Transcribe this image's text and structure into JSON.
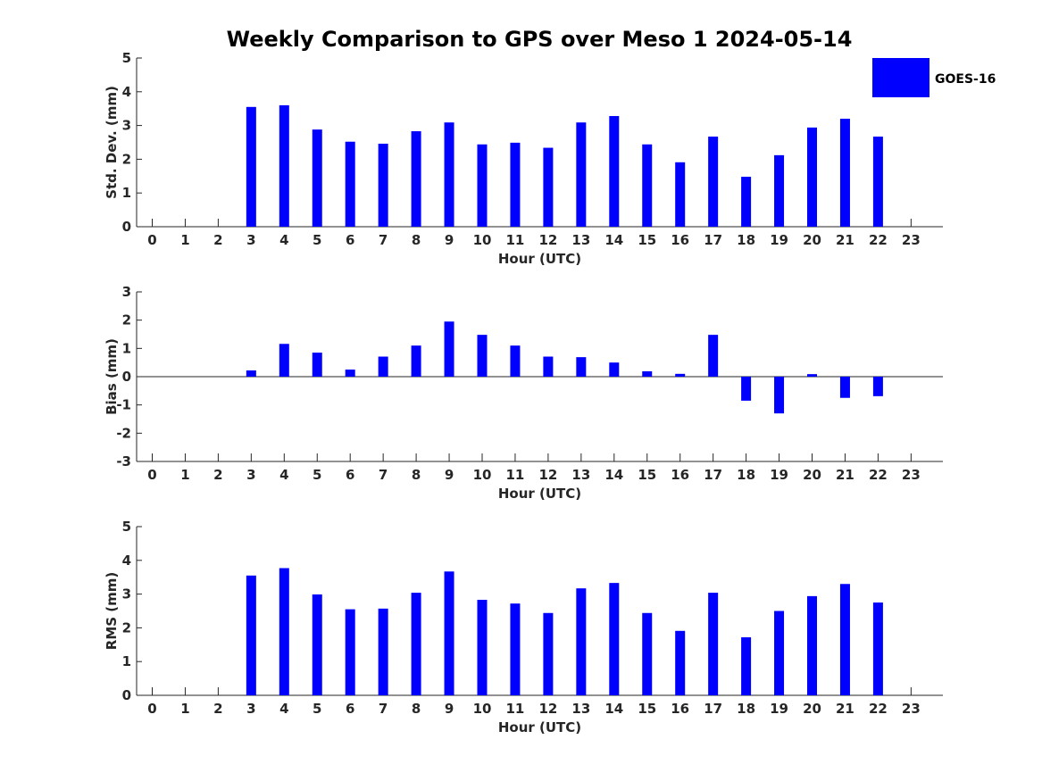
{
  "title": "Weekly Comparison to GPS over Meso 1 2024-05-14",
  "legend": {
    "label": "GOES-16",
    "color": "#0000ff"
  },
  "chart_data": [
    {
      "type": "bar",
      "name": "std",
      "ylabel": "Std. Dev. (mm)",
      "xlabel": "Hour (UTC)",
      "ylim": [
        0,
        5
      ],
      "yticks": [
        "0",
        "1",
        "2",
        "3",
        "4",
        "5"
      ],
      "categories": [
        "0",
        "1",
        "2",
        "3",
        "4",
        "5",
        "6",
        "7",
        "8",
        "9",
        "10",
        "11",
        "12",
        "13",
        "14",
        "15",
        "16",
        "17",
        "18",
        "19",
        "20",
        "21",
        "22",
        "23"
      ],
      "series": [
        {
          "name": "GOES-16",
          "values": [
            null,
            null,
            null,
            3.55,
            3.6,
            2.88,
            2.52,
            2.46,
            2.83,
            3.09,
            2.44,
            2.49,
            2.34,
            3.09,
            3.28,
            2.44,
            1.91,
            2.67,
            1.48,
            2.12,
            2.94,
            3.2,
            2.67,
            null
          ]
        }
      ]
    },
    {
      "type": "bar",
      "name": "bias",
      "ylabel": "Bias (mm)",
      "xlabel": "Hour (UTC)",
      "ylim": [
        -3,
        3
      ],
      "yticks": [
        "-3",
        "-2",
        "-1",
        "0",
        "1",
        "2",
        "3"
      ],
      "categories": [
        "0",
        "1",
        "2",
        "3",
        "4",
        "5",
        "6",
        "7",
        "8",
        "9",
        "10",
        "11",
        "12",
        "13",
        "14",
        "15",
        "16",
        "17",
        "18",
        "19",
        "20",
        "21",
        "22",
        "23"
      ],
      "series": [
        {
          "name": "GOES-16",
          "values": [
            null,
            null,
            null,
            0.22,
            1.16,
            0.85,
            0.25,
            0.71,
            1.1,
            1.95,
            1.48,
            1.1,
            0.71,
            0.69,
            0.5,
            0.19,
            0.1,
            1.48,
            -0.85,
            -1.3,
            0.09,
            -0.75,
            -0.69,
            null
          ]
        }
      ]
    },
    {
      "type": "bar",
      "name": "rms",
      "ylabel": "RMS (mm)",
      "xlabel": "Hour (UTC)",
      "ylim": [
        0,
        5
      ],
      "yticks": [
        "0",
        "1",
        "2",
        "3",
        "4",
        "5"
      ],
      "categories": [
        "0",
        "1",
        "2",
        "3",
        "4",
        "5",
        "6",
        "7",
        "8",
        "9",
        "10",
        "11",
        "12",
        "13",
        "14",
        "15",
        "16",
        "17",
        "18",
        "19",
        "20",
        "21",
        "22",
        "23"
      ],
      "series": [
        {
          "name": "GOES-16",
          "values": [
            null,
            null,
            null,
            3.55,
            3.77,
            2.99,
            2.55,
            2.57,
            3.04,
            3.67,
            2.83,
            2.72,
            2.44,
            3.17,
            3.33,
            2.44,
            1.91,
            3.04,
            1.72,
            2.5,
            2.94,
            3.3,
            2.75,
            null
          ]
        }
      ]
    }
  ]
}
